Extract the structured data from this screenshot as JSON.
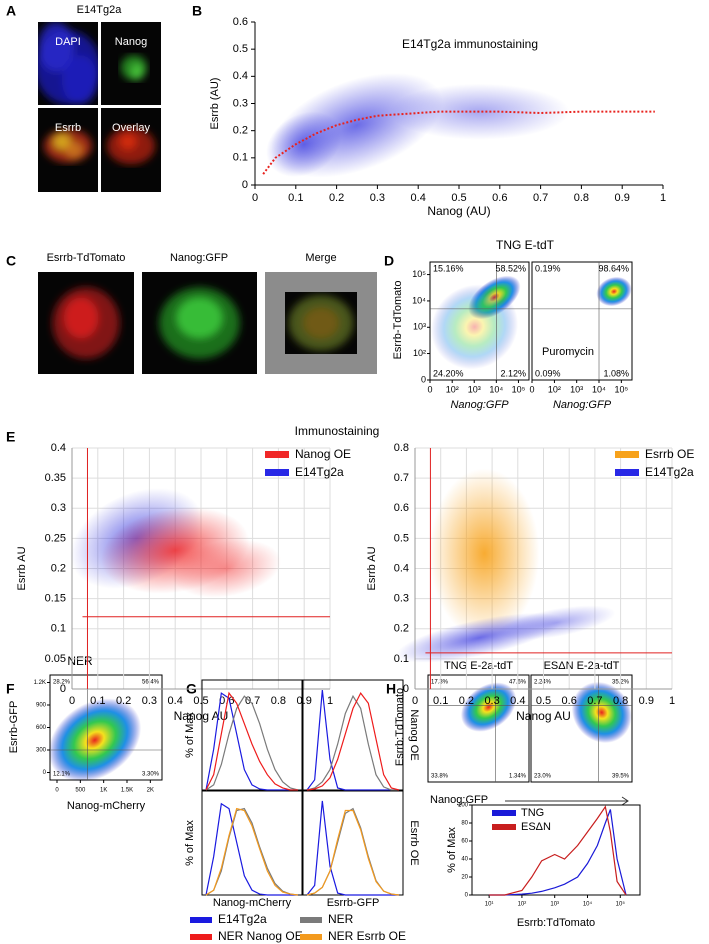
{
  "panel_labels": [
    "A",
    "B",
    "C",
    "D",
    "E",
    "F",
    "G",
    "H"
  ],
  "figure_a": {
    "title": "E14Tg2a",
    "images": [
      "DAPI",
      "Nanog",
      "Esrrb",
      "Overlay"
    ]
  },
  "figure_c": {
    "images": [
      "Esrrb-TdTomato",
      "Nanog:GFP",
      "Merge"
    ]
  },
  "chart_data": [
    {
      "type": "scatter",
      "title": "E14Tg2a immunostaining",
      "x_label": "Nanog (AU)",
      "y_label": "Esrrb (AU)",
      "xlim": [
        0,
        1
      ],
      "ylim": [
        0,
        0.6
      ],
      "xticks": [
        0,
        0.1,
        0.2,
        0.3,
        0.4,
        0.5,
        0.6,
        0.7,
        0.8,
        0.9,
        1
      ],
      "yticks": [
        0,
        0.1,
        0.2,
        0.3,
        0.4,
        0.5,
        0.6
      ],
      "point_color": "#3b3bdf",
      "trend": {
        "color": "#e8231f",
        "x": [
          0.02,
          0.05,
          0.1,
          0.15,
          0.2,
          0.25,
          0.3,
          0.35,
          0.4,
          0.45,
          0.5,
          0.6,
          0.7,
          0.8,
          0.9,
          0.98
        ],
        "values": [
          0.04,
          0.1,
          0.15,
          0.19,
          0.22,
          0.24,
          0.255,
          0.26,
          0.265,
          0.27,
          0.27,
          0.27,
          0.265,
          0.27,
          0.27,
          0.27
        ]
      }
    },
    {
      "type": "flow",
      "scale": "biexponential",
      "title": "TNG E-tdT",
      "y_label": "Esrrb-TdTomato",
      "x_label": "Nanog:GFP",
      "xlim": [
        0,
        300000
      ],
      "ylim": [
        0,
        300000
      ],
      "xticks": [
        0,
        {
          "value": 100,
          "label": "10²"
        },
        {
          "value": 1000,
          "label": "10³"
        },
        {
          "value": 10000,
          "label": "10⁴"
        },
        {
          "value": 100000,
          "label": "10⁵"
        }
      ],
      "yticks": [
        0,
        {
          "value": 100,
          "label": "10²"
        },
        {
          "value": 1000,
          "label": "10³"
        },
        {
          "value": 10000,
          "label": "10⁴"
        },
        {
          "value": 100000,
          "label": "10⁵"
        }
      ],
      "gates": {
        "x": 10000,
        "y": 5000
      },
      "plots": [
        {
          "quadrants": [
            15.16,
            58.52,
            24.2,
            2.12
          ],
          "value_labels": [
            "15.16%",
            "58.52%",
            "24.20%",
            "2.12%"
          ]
        },
        {
          "annotation": "Puromycin",
          "quadrants": [
            0.19,
            98.64,
            0.09,
            1.08
          ],
          "value_labels": [
            "0.19%",
            "98.64%",
            "0.09%",
            "1.08%"
          ]
        }
      ]
    },
    {
      "type": "scatter",
      "title": "Immunostaining",
      "x_label": "Nanog AU",
      "y_label": "Esrrb AU",
      "grid": true,
      "xlim": [
        0,
        1
      ],
      "ylim": [
        0,
        0.4
      ],
      "xticks": [
        0,
        0.1,
        0.2,
        0.3,
        0.4,
        0.5,
        0.6,
        0.7,
        0.8,
        0.9,
        1
      ],
      "yticks": [
        0,
        0.05,
        0.1,
        0.15,
        0.2,
        0.25,
        0.3,
        0.35,
        0.4
      ],
      "legend": [
        {
          "name": "Nanog OE",
          "color": "#f02828"
        },
        {
          "name": "E14Tg2a",
          "color": "#2828e6"
        }
      ],
      "gates": {
        "x": 0.06,
        "y": 0.12
      }
    },
    {
      "type": "scatter",
      "x_label": "Nanog AU",
      "y_label": "Esrrb AU",
      "grid": true,
      "xlim": [
        0,
        1
      ],
      "ylim": [
        0,
        0.8
      ],
      "xticks": [
        0,
        0.1,
        0.2,
        0.3,
        0.4,
        0.5,
        0.6,
        0.7,
        0.8,
        0.9,
        1
      ],
      "yticks": [
        0,
        0.1,
        0.2,
        0.3,
        0.4,
        0.5,
        0.6,
        0.7,
        0.8
      ],
      "legend": [
        {
          "name": "Esrrb OE",
          "color": "#f7a21b"
        },
        {
          "name": "E14Tg2a",
          "color": "#2828e6"
        }
      ],
      "gates": {
        "x": 0.06,
        "y": 0.12
      }
    },
    {
      "type": "flow",
      "scale": "linear",
      "title": "NER",
      "y_label": "Esrrb-GFP",
      "x_label": "Nanog-mCherry",
      "xlim": [
        -150,
        2250
      ],
      "ylim": [
        -100,
        1300
      ],
      "xticks": [
        0,
        500,
        {
          "value": 1000,
          "label": "1K"
        },
        {
          "value": 1500,
          "label": "1.5K"
        },
        {
          "value": 2000,
          "label": "2K"
        }
      ],
      "yticks": [
        0,
        300,
        600,
        900,
        {
          "value": 1200,
          "label": "1.2K"
        }
      ],
      "gates": {
        "x": 650,
        "y": 300
      },
      "plots": [
        {
          "quadrants": [
            28.2,
            56.4,
            12.1,
            3.3
          ],
          "value_labels": [
            "28.2%",
            "56.4%",
            "12.1%",
            "3.30%"
          ]
        }
      ]
    },
    {
      "type": "histogram-overlay",
      "y_label": "% of Max",
      "x_labels": [
        "Nanog-mCherry",
        "Esrrb-GFP"
      ],
      "row_labels": [
        "Nanog OE",
        "Esrrb OE"
      ],
      "ylim": [
        0,
        100
      ],
      "series": [
        {
          "name": "E14Tg2a",
          "color": "#1a1ae0",
          "values": [
            [
              0,
              40,
              95,
              90,
              55,
              20,
              5,
              1,
              0,
              0,
              0,
              0,
              0
            ],
            [
              0,
              10,
              98,
              30,
              2,
              0,
              0,
              0,
              0,
              0,
              0,
              0,
              0
            ],
            [
              0,
              40,
              95,
              90,
              55,
              20,
              5,
              1,
              0,
              0,
              0,
              0,
              0
            ],
            [
              0,
              10,
              98,
              30,
              2,
              0,
              0,
              0,
              0,
              0,
              0,
              0,
              0
            ]
          ]
        },
        {
          "name": "NER",
          "color": "#7a7a7a",
          "values": [
            [
              0,
              5,
              25,
              55,
              80,
              92,
              85,
              65,
              40,
              20,
              8,
              2,
              0
            ],
            [
              0,
              2,
              8,
              20,
              45,
              75,
              92,
              80,
              45,
              15,
              3,
              0,
              0
            ],
            [
              0,
              5,
              25,
              60,
              88,
              90,
              75,
              50,
              28,
              12,
              4,
              1,
              0
            ],
            [
              0,
              2,
              8,
              25,
              55,
              85,
              90,
              70,
              40,
              15,
              4,
              1,
              0
            ]
          ]
        },
        {
          "name": "NER Nanog OE",
          "color": "#ee1c1c",
          "values": [
            [
              0,
              15,
              55,
              95,
              85,
              65,
              45,
              28,
              15,
              6,
              2,
              0,
              0
            ],
            [
              0,
              1,
              4,
              12,
              30,
              55,
              80,
              95,
              85,
              50,
              15,
              2,
              0
            ],
            null,
            null
          ]
        },
        {
          "name": "NER Esrrb OE",
          "color": "#f39a1e",
          "values": [
            null,
            null,
            [
              0,
              5,
              28,
              62,
              90,
              88,
              72,
              48,
              25,
              10,
              3,
              1,
              0
            ],
            [
              0,
              2,
              8,
              25,
              58,
              88,
              88,
              68,
              38,
              14,
              4,
              1,
              0
            ]
          ]
        }
      ]
    },
    {
      "type": "flow",
      "scale": "biexponential",
      "y_label": "Esrrb:TdTomato",
      "x_label": "Nanog:GFP",
      "xlim": [
        0,
        300000
      ],
      "ylim": [
        0,
        300000
      ],
      "gates": {
        "x": 10000,
        "y": 16000
      },
      "plots": [
        {
          "title": "TNG E-2a-tdT",
          "quadrants": [
            17.3,
            47.6,
            33.8,
            1.34
          ],
          "value_labels": [
            "17.3%",
            "47.6%",
            "33.8%",
            "1.34%"
          ]
        },
        {
          "title": "ESΔN E-2a-tdT",
          "quadrants": [
            2.24,
            35.2,
            23.0,
            39.5
          ],
          "value_labels": [
            "2.24%",
            "35.2%",
            "23.0%",
            "39.5%"
          ]
        }
      ]
    },
    {
      "type": "line",
      "scale": "log",
      "y_label": "% of Max",
      "x_label": "Esrrb:TdTomato",
      "xlim": [
        3,
        400000
      ],
      "ylim": [
        0,
        100
      ],
      "yticks": [
        0,
        20,
        40,
        60,
        80,
        100
      ],
      "xticks": [
        {
          "value": 10,
          "label": "10¹"
        },
        {
          "value": 100,
          "label": "10²"
        },
        {
          "value": 1000,
          "label": "10³"
        },
        {
          "value": 10000,
          "label": "10⁴"
        },
        {
          "value": 100000,
          "label": "10⁵"
        }
      ],
      "x": [
        10,
        30,
        100,
        200,
        400,
        1000,
        2000,
        5000,
        10000,
        20000,
        35000,
        50000,
        80000,
        150000
      ],
      "series": [
        {
          "name": "TNG",
          "color": "#1a1ad8",
          "values": [
            0,
            0,
            1,
            2,
            4,
            8,
            12,
            20,
            35,
            55,
            80,
            95,
            40,
            0
          ]
        },
        {
          "name": "ESΔN",
          "color": "#c81e1e",
          "values": [
            0,
            0,
            5,
            20,
            38,
            45,
            40,
            55,
            70,
            85,
            98,
            70,
            15,
            0
          ]
        }
      ]
    }
  ]
}
